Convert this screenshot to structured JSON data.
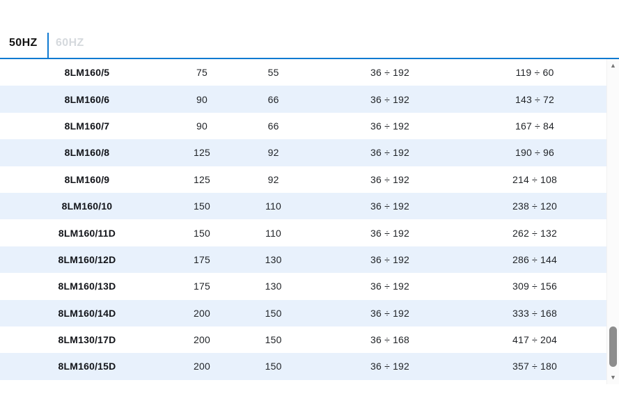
{
  "tabs": {
    "items": [
      {
        "label": "50HZ",
        "active": true
      },
      {
        "label": "60HZ",
        "active": false
      }
    ]
  },
  "colors": {
    "accent": "#0f7ad1",
    "row_alt": "#e8f1fc",
    "active_tab_text": "#121212",
    "inactive_tab_text": "#d5d9dd",
    "scrollbar_thumb": "#8d8d8d"
  },
  "icons": {
    "scroll_up": "▲",
    "scroll_down": "▼"
  },
  "table": {
    "rows": [
      {
        "model": "8LM160/5",
        "values": [
          "75",
          "55",
          "36 ÷ 192",
          "119 ÷ 60"
        ]
      },
      {
        "model": "8LM160/6",
        "values": [
          "90",
          "66",
          "36 ÷ 192",
          "143 ÷ 72"
        ]
      },
      {
        "model": "8LM160/7",
        "values": [
          "90",
          "66",
          "36 ÷ 192",
          "167 ÷ 84"
        ]
      },
      {
        "model": "8LM160/8",
        "values": [
          "125",
          "92",
          "36 ÷ 192",
          "190 ÷ 96"
        ]
      },
      {
        "model": "8LM160/9",
        "values": [
          "125",
          "92",
          "36 ÷ 192",
          "214 ÷ 108"
        ]
      },
      {
        "model": "8LM160/10",
        "values": [
          "150",
          "110",
          "36 ÷ 192",
          "238 ÷ 120"
        ]
      },
      {
        "model": "8LM160/11D",
        "values": [
          "150",
          "110",
          "36 ÷ 192",
          "262 ÷ 132"
        ]
      },
      {
        "model": "8LM160/12D",
        "values": [
          "175",
          "130",
          "36 ÷ 192",
          "286 ÷ 144"
        ]
      },
      {
        "model": "8LM160/13D",
        "values": [
          "175",
          "130",
          "36 ÷ 192",
          "309 ÷ 156"
        ]
      },
      {
        "model": "8LM160/14D",
        "values": [
          "200",
          "150",
          "36 ÷ 192",
          "333 ÷ 168"
        ]
      },
      {
        "model": "8LM130/17D",
        "values": [
          "200",
          "150",
          "36 ÷ 168",
          "417 ÷ 204"
        ]
      },
      {
        "model": "8LM160/15D",
        "values": [
          "200",
          "150",
          "36 ÷ 192",
          "357 ÷ 180"
        ]
      }
    ]
  }
}
